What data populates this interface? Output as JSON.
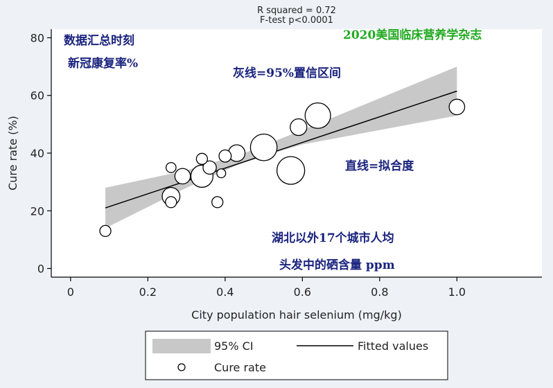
{
  "chart_data": {
    "type": "scatter",
    "title_lines": [
      "R squared = 0.72",
      "F-test p<0.0001"
    ],
    "xlabel": "City population hair selenium (mg/kg)",
    "ylabel": "Cure rate (%)",
    "xlim": [
      -0.05,
      1.22
    ],
    "ylim": [
      -3,
      83
    ],
    "xticks": [
      0,
      0.2,
      0.4,
      0.6,
      0.8,
      1.0
    ],
    "xtick_labels": [
      "0",
      "0.2",
      "0.4",
      "0.6",
      "0.8",
      "1.0"
    ],
    "yticks": [
      0,
      20,
      40,
      60,
      80
    ],
    "ytick_labels": [
      "0",
      "20",
      "40",
      "60",
      "80"
    ],
    "grid": false,
    "series": [
      {
        "name": "Cure rate",
        "kind": "bubble",
        "points": [
          {
            "x": 0.09,
            "y": 13,
            "size": 1.0
          },
          {
            "x": 0.26,
            "y": 35,
            "size": 0.9
          },
          {
            "x": 0.26,
            "y": 23,
            "size": 1.0
          },
          {
            "x": 0.26,
            "y": 25,
            "size": 1.6
          },
          {
            "x": 0.29,
            "y": 32,
            "size": 1.4
          },
          {
            "x": 0.34,
            "y": 32,
            "size": 2.0
          },
          {
            "x": 0.34,
            "y": 38,
            "size": 1.0
          },
          {
            "x": 0.36,
            "y": 35,
            "size": 1.2
          },
          {
            "x": 0.38,
            "y": 23,
            "size": 1.0
          },
          {
            "x": 0.39,
            "y": 33,
            "size": 0.8
          },
          {
            "x": 0.4,
            "y": 39,
            "size": 1.1
          },
          {
            "x": 0.43,
            "y": 40,
            "size": 1.5
          },
          {
            "x": 0.5,
            "y": 42,
            "size": 2.4
          },
          {
            "x": 0.57,
            "y": 34,
            "size": 2.5
          },
          {
            "x": 0.59,
            "y": 49,
            "size": 1.5
          },
          {
            "x": 0.64,
            "y": 53,
            "size": 2.3
          },
          {
            "x": 1.0,
            "y": 56,
            "size": 1.4
          }
        ]
      },
      {
        "name": "Fitted values",
        "kind": "line",
        "x": [
          0.09,
          1.0
        ],
        "y": [
          21,
          61.5
        ]
      },
      {
        "name": "95% CI",
        "kind": "band",
        "x": [
          0.09,
          0.3,
          0.45,
          0.6,
          1.0
        ],
        "lower": [
          14,
          28,
          37,
          43,
          53
        ],
        "upper": [
          28,
          34,
          40,
          48,
          70
        ]
      }
    ],
    "legend": {
      "position": "bottom",
      "entries": [
        "95% CI",
        "Fitted values",
        "Cure rate"
      ]
    },
    "annotations": [
      {
        "lines": [
          "数据汇总时刻",
          "新冠康复率%"
        ],
        "color": "#1a237e"
      },
      {
        "lines": [
          "2020美国临床营养学杂志"
        ],
        "color": "#22aa22"
      },
      {
        "lines": [
          "灰线=95%置信区间"
        ],
        "color": "#1a237e"
      },
      {
        "lines": [
          "直线=拟合度"
        ],
        "color": "#1a237e"
      },
      {
        "lines": [
          "湖北以外17个城市人均",
          "头发中的硒含量 ppm"
        ],
        "color": "#1a237e"
      }
    ]
  }
}
